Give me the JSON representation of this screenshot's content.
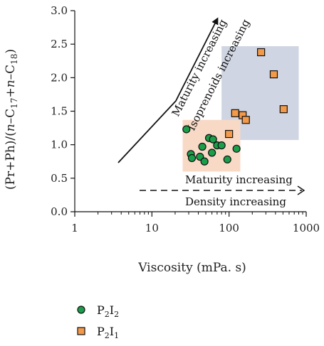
{
  "chart_data": {
    "type": "scatter",
    "xscale": "log",
    "xlim": [
      1,
      1000
    ],
    "ylim": [
      0.0,
      3.0
    ],
    "xticks": [
      "1",
      "10",
      "100",
      "1000"
    ],
    "yticks": [
      "0.0",
      "0.5",
      "1.0",
      "1.5",
      "2.0",
      "2.5",
      "3.0"
    ],
    "xlabel": "Viscosity (mPa. s)",
    "ylabel_parts": {
      "prefix": "(Pr+Ph)/(",
      "n1": "n",
      "c17": "–C",
      "sub17": "17",
      "plus": "+",
      "n2": "n",
      "c18": "–C",
      "sub18": "18",
      "suffix": ")"
    },
    "series": [
      {
        "name_base": "P",
        "name_sub1": "2",
        "name_mid": "I",
        "name_sub2": "2",
        "marker": "circle",
        "color": "#1a9e4a",
        "points": [
          [
            28,
            1.23
          ],
          [
            32,
            0.86
          ],
          [
            33,
            0.8
          ],
          [
            42,
            0.82
          ],
          [
            45,
            0.97
          ],
          [
            48,
            0.75
          ],
          [
            55,
            1.1
          ],
          [
            60,
            0.88
          ],
          [
            62,
            1.08
          ],
          [
            70,
            0.99
          ],
          [
            80,
            0.99
          ],
          [
            95,
            0.78
          ],
          [
            125,
            0.94
          ]
        ]
      },
      {
        "name_base": "P",
        "name_sub1": "2",
        "name_mid": "I",
        "name_sub2": "1",
        "marker": "square",
        "color": "#f29a4a",
        "points": [
          [
            100,
            1.16
          ],
          [
            120,
            1.47
          ],
          [
            150,
            1.44
          ],
          [
            165,
            1.37
          ],
          [
            260,
            2.38
          ],
          [
            380,
            2.05
          ],
          [
            510,
            1.53
          ]
        ]
      }
    ],
    "regions": [
      {
        "x": [
          80,
          800
        ],
        "y": [
          1.07,
          2.47
        ],
        "color": "#cfd5e2"
      },
      {
        "x": [
          25,
          140
        ],
        "y": [
          0.6,
          1.37
        ],
        "color": "#f8d9c6"
      }
    ],
    "annotations": {
      "maturity_rotated": "Maturity increasing",
      "isoprenoids_rotated": "Isoprenoids increasing",
      "maturity_horizontal": "Maturity increasing",
      "density_horizontal": "Density increasing"
    },
    "legend_placement": "bottom-left",
    "grid": false
  }
}
